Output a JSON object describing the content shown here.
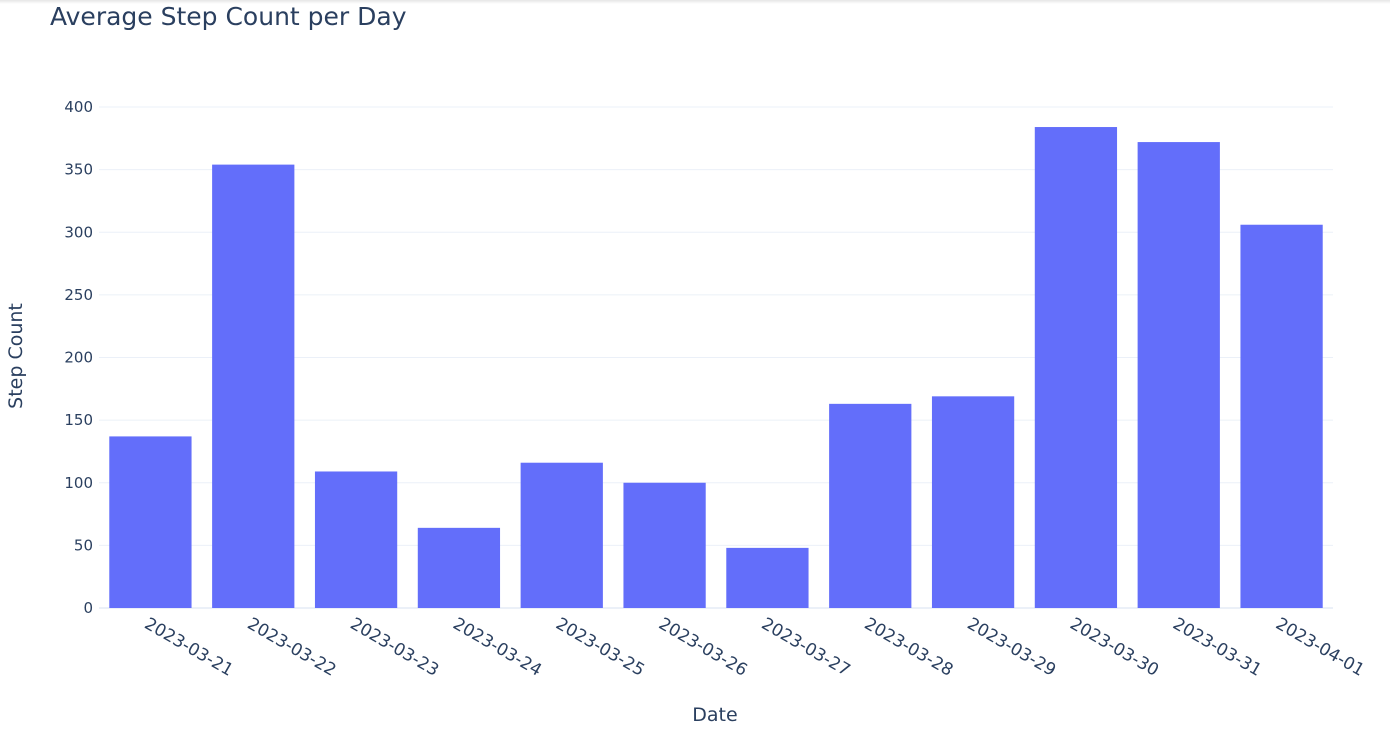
{
  "chart_data": {
    "type": "bar",
    "title": "Average Step Count per Day",
    "xlabel": "Date",
    "ylabel": "Step Count",
    "categories": [
      "2023-03-21",
      "2023-03-22",
      "2023-03-23",
      "2023-03-24",
      "2023-03-25",
      "2023-03-26",
      "2023-03-27",
      "2023-03-28",
      "2023-03-29",
      "2023-03-30",
      "2023-03-31",
      "2023-04-01"
    ],
    "values": [
      137,
      354,
      109,
      64,
      116,
      100,
      48,
      163,
      169,
      384,
      372,
      306
    ],
    "ylim": [
      0,
      400
    ],
    "yticks": [
      0,
      50,
      100,
      150,
      200,
      250,
      300,
      350,
      400
    ],
    "grid": true,
    "bar_color": "#636efa",
    "text_color": "#2a3f5f",
    "grid_color": "#ebf0f8"
  }
}
